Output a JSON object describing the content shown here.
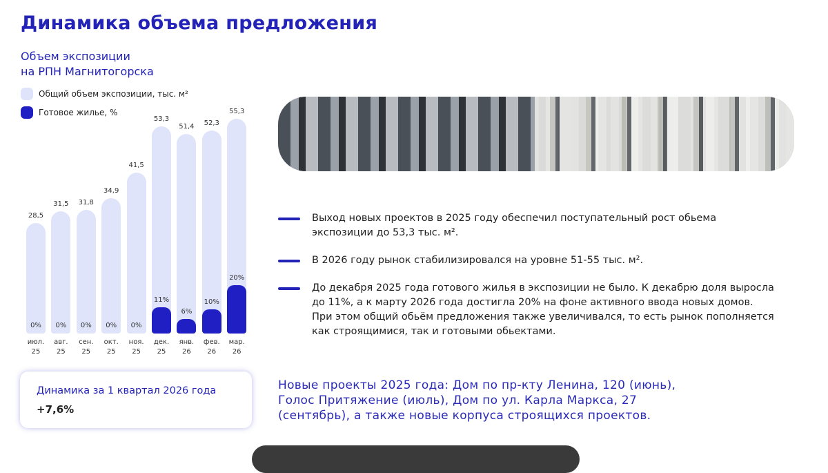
{
  "header": {
    "title": "Динамика объема предложения"
  },
  "chart_data": {
    "type": "bar",
    "title": [
      "Объем экспозиции",
      "на РПН Магнитогорска"
    ],
    "categories": [
      "июл. 25",
      "авг. 25",
      "сен. 25",
      "окт. 25",
      "ноя. 25",
      "дек. 25",
      "янв. 26",
      "фев. 26",
      "мар. 26"
    ],
    "series": [
      {
        "name": "Общий объем экспозиции, тыс. м²",
        "color": "#dfe4fa",
        "values": [
          28.5,
          31.5,
          31.8,
          34.9,
          41.5,
          53.3,
          51.4,
          52.3,
          55.3
        ],
        "value_labels": [
          "28,5",
          "31,5",
          "31,8",
          "34,9",
          "41,5",
          "53,3",
          "51,4",
          "52,3",
          "55,3"
        ]
      },
      {
        "name": "Готовое жилье, %",
        "color": "#1f1fc4",
        "axis": "y2",
        "values": [
          0,
          0,
          0,
          0,
          0,
          11,
          6,
          10,
          20
        ],
        "value_labels": [
          "0%",
          "0%",
          "0%",
          "0%",
          "0%",
          "11%",
          "6%",
          "10%",
          "20%"
        ]
      }
    ]
  },
  "summary": {
    "label": "Динамика за 1 квартал 2026 года",
    "value": "+7,6%"
  },
  "bullets": [
    [
      "Выход новых проектов в 2025 году обеспечил поступательный рост обьема",
      "экспозиции до 53,3 тыс. м²."
    ],
    [
      "В 2026 году рынок стабилизировался на уровне 51-55 тыс. м²."
    ],
    [
      "До декабря 2025 года готового жилья в экспозиции не было. К декабрю доля выросла",
      "до 11%, а к марту 2026 года достигла 20% на фоне активного ввода новых домов.",
      "При этом общий обьём предложения также увеличивался, то есть рынок пополняется",
      "как строящимися, так и готовыми обьектами."
    ]
  ],
  "footnote": [
    "Новые проекты 2025 года: Дом по пр-кту Ленина, 120 (июнь),",
    "Голос Притяжение (июль), Дом по ул. Карла Маркса, 27",
    "(сентябрь), а также новые корпуса строящихся проектов."
  ]
}
